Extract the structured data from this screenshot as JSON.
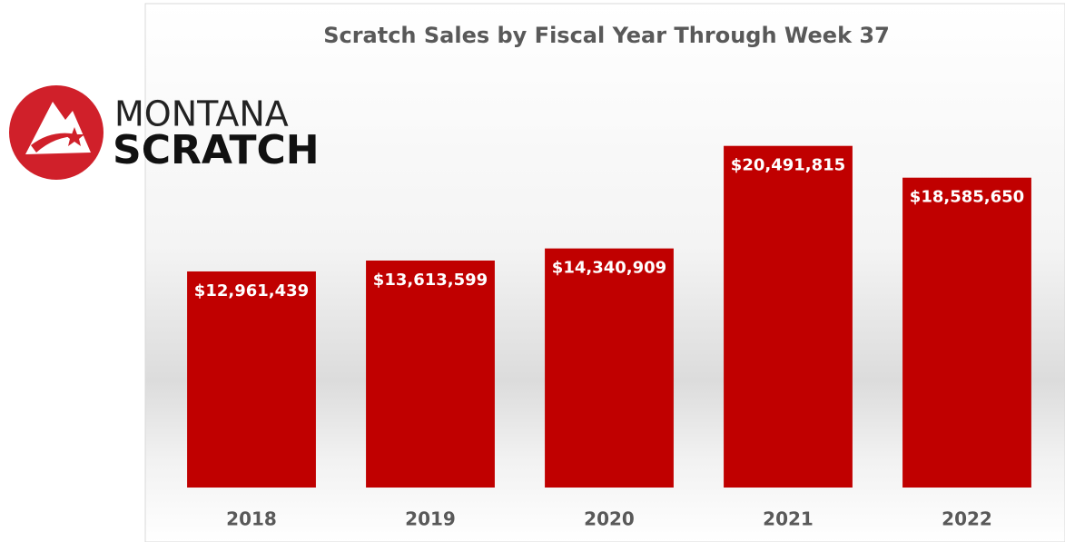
{
  "logo": {
    "line1": "MONTANA",
    "line2": "SCRATCH"
  },
  "chart_data": {
    "type": "bar",
    "title": "Scratch Sales by Fiscal Year Through Week 37",
    "categories": [
      "2018",
      "2019",
      "2020",
      "2021",
      "2022"
    ],
    "values": [
      12961439,
      13613599,
      14340909,
      20491815,
      18585650
    ],
    "value_labels": [
      "$12,961,439",
      "$13,613,599",
      "$14,340,909",
      "$20,491,815",
      "$18,585,650"
    ],
    "color": "#c00000",
    "ylim": [
      0,
      22000000
    ]
  }
}
